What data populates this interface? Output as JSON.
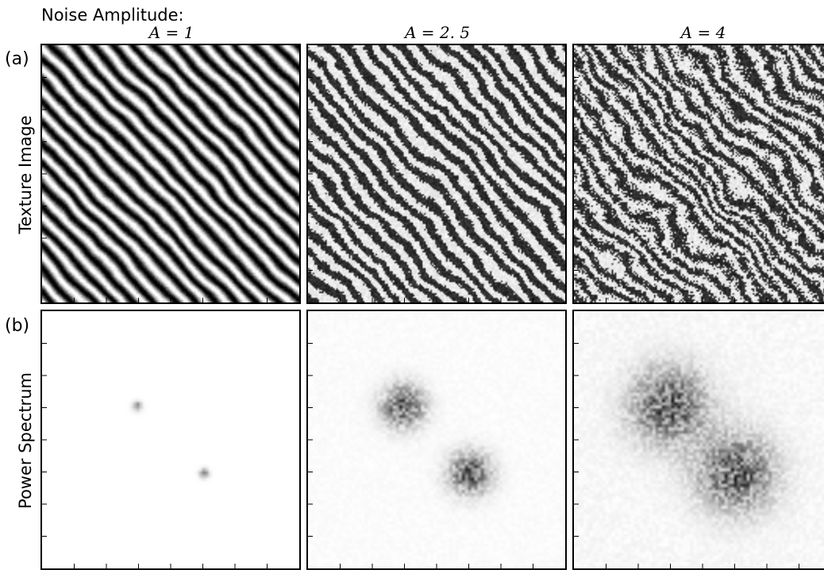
{
  "figure": {
    "super_title": "Noise Amplitude:",
    "columns": [
      {
        "title": "A = 1",
        "noise_amplitude": 1
      },
      {
        "title": "A = 2. 5",
        "noise_amplitude": 2.5
      },
      {
        "title": "A = 4",
        "noise_amplitude": 4
      }
    ],
    "rows": [
      {
        "tag": "(a)",
        "label": "Texture Image",
        "kind": "texture"
      },
      {
        "tag": "(b)",
        "label": "Power Spectrum",
        "kind": "spectrum"
      }
    ],
    "colormap": "grayscale-inverted",
    "tick_labels_shown": false
  }
}
